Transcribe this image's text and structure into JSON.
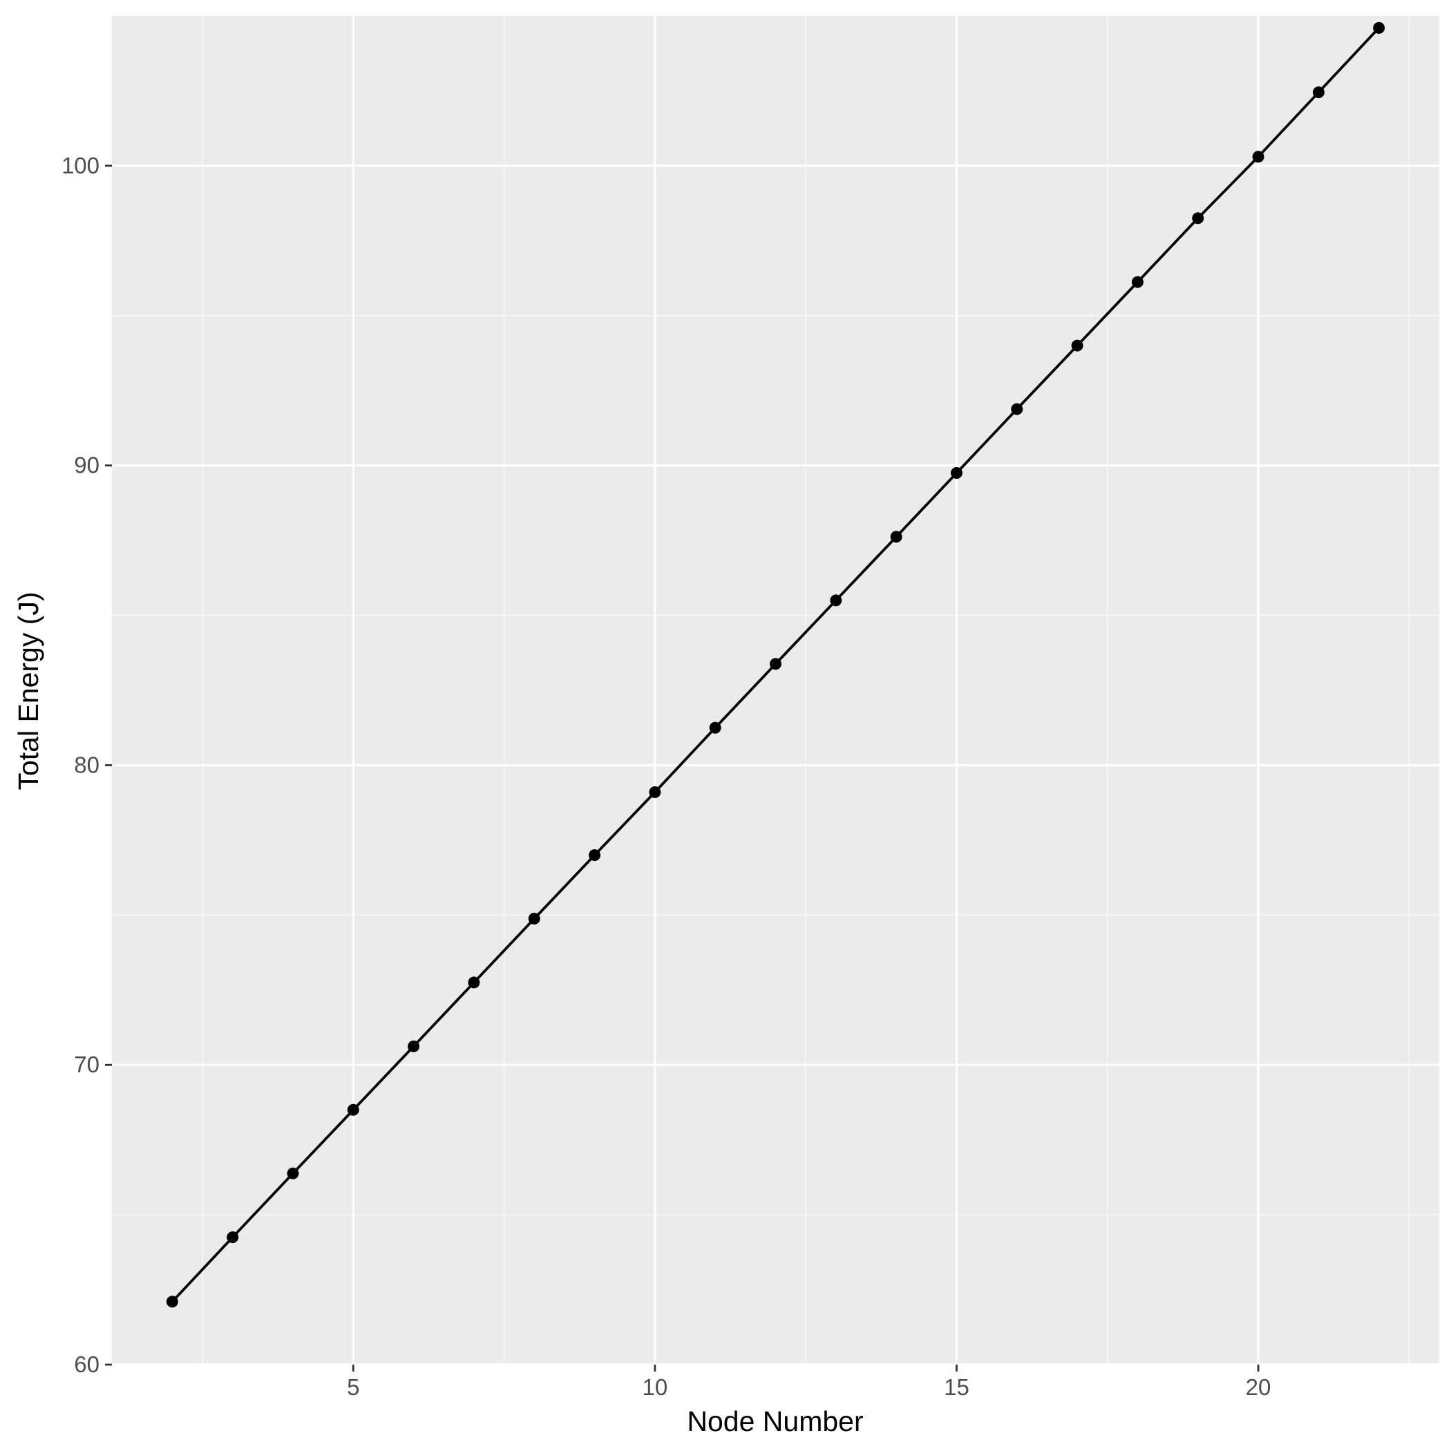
{
  "chart_data": {
    "type": "line",
    "title": "",
    "xlabel": "Node Number",
    "ylabel": "Total Energy (J)",
    "x": [
      2,
      3,
      4,
      5,
      6,
      7,
      8,
      9,
      10,
      11,
      12,
      13,
      14,
      15,
      16,
      17,
      18,
      19,
      20,
      21,
      22
    ],
    "series": [
      {
        "values": [
          62.1,
          64.25,
          66.38,
          68.5,
          70.62,
          72.75,
          74.88,
          77.0,
          79.1,
          81.25,
          83.38,
          85.5,
          87.62,
          89.75,
          91.88,
          94.0,
          96.12,
          98.25,
          100.3,
          102.45,
          104.6
        ]
      }
    ],
    "xlim": [
      1.0,
      23.0
    ],
    "ylim": [
      60,
      105.0
    ],
    "x_ticks": [
      5,
      10,
      15,
      20
    ],
    "y_ticks": [
      60,
      70,
      80,
      90,
      100
    ],
    "x_tick_labels": [
      "5",
      "10",
      "15",
      "20"
    ],
    "y_tick_labels": [
      "60",
      "70",
      "80",
      "90",
      "100"
    ],
    "grid": true,
    "legend": "none",
    "colors": {
      "panel_background": "#EBEBEB",
      "grid_major": "#FFFFFF",
      "grid_minor": "#F7F7F7",
      "line": "#000000",
      "points": "#000000",
      "tick_text": "#4D4D4D",
      "axis_title": "#000000"
    }
  }
}
